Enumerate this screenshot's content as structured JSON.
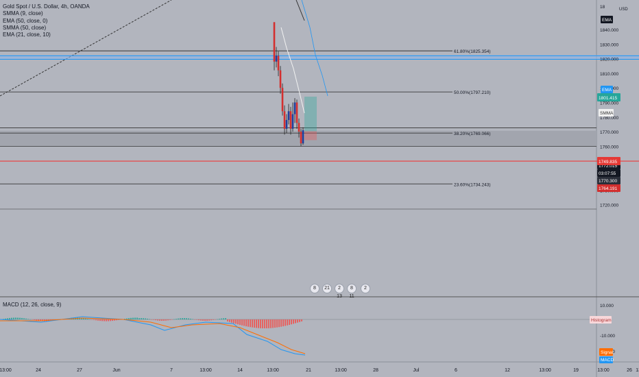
{
  "symbol": {
    "title": "Gold Spot / U.S. Dollar, 4h, OANDA",
    "currency": "USD"
  },
  "indicators": [
    "SMMA (9, close)",
    "EMA (50, close, 0)",
    "SMMA (50, close)",
    "EMA (21, close, 10)"
  ],
  "macd": {
    "label": "MACD (12, 26, close, 9)"
  },
  "fib_levels": [
    {
      "label": "61.80%(1825.354)",
      "price": 1825.354
    },
    {
      "label": "50.00%(1797.210)",
      "price": 1797.21
    },
    {
      "label": "38.20%(1769.066)",
      "price": 1769.066
    },
    {
      "label": "23.60%(1734.243)",
      "price": 1734.243
    }
  ],
  "price_axis": {
    "ticks": [
      "1840.000",
      "1830.000",
      "1820.000",
      "1810.000",
      "1800.000",
      "1790.000",
      "1780.000",
      "1770.000",
      "1760.000",
      "1750.000",
      "1740.000",
      "1730.000",
      "1720.000"
    ],
    "top_partial": "18"
  },
  "macd_axis": {
    "ticks": [
      "10.000",
      "0.000",
      "-10.000",
      "-20.000"
    ]
  },
  "time_axis": {
    "labels": [
      "13:00",
      "24",
      "27",
      "Jun",
      "7",
      "13:00",
      "14",
      "13:00",
      "21",
      "13:00",
      "28",
      "Jul",
      "6",
      "12",
      "13:00",
      "19",
      "13:00",
      "26",
      "13:0"
    ]
  },
  "price_badges": {
    "ema_top": "EMA",
    "ema_mid": "EMA",
    "ema_mid_value": "1801.415",
    "smma": "SMMA",
    "last_price": "1772.015",
    "countdown": "03:07:55",
    "price2": "1770.300",
    "price3": "1764.191",
    "red_line": "1749.835",
    "histogram": "Histogram",
    "signal": "Signal",
    "macd": "MACD"
  },
  "events": [
    "8",
    "21",
    "2 13",
    "8 11",
    "2"
  ],
  "colors": {
    "background": "#b2b5be",
    "bull": "#2962ff",
    "bear": "#d32f2f",
    "red_line": "#ef3b3b",
    "ema_blue": "#2196f3",
    "teal": "#26a69a",
    "signal_orange": "#ff6d00"
  }
}
